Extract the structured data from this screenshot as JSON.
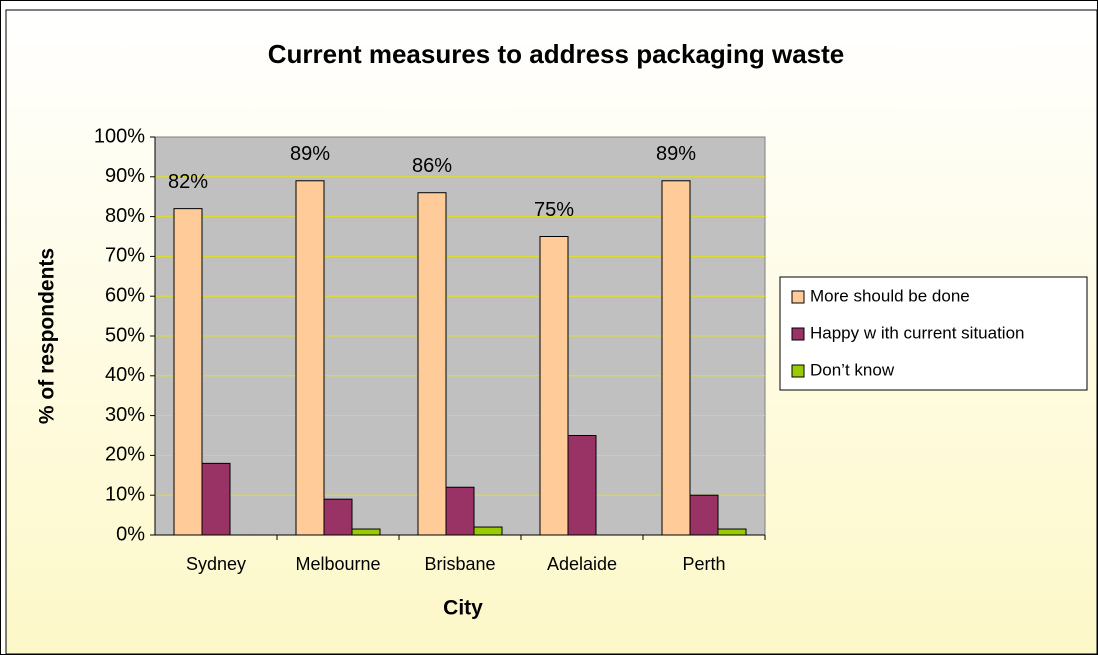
{
  "chart_data": {
    "type": "bar",
    "title": "Current measures to address packaging waste",
    "x_label": "City",
    "y_label": "% of respondents",
    "categories": [
      "Sydney",
      "Melbourne",
      "Brisbane",
      "Adelaide",
      "Perth"
    ],
    "series": [
      {
        "name": "More should be done",
        "color": "#ffcc99",
        "values": [
          82,
          89,
          86,
          75,
          89
        ],
        "value_labels": [
          "82%",
          "89%",
          "86%",
          "75%",
          "89%"
        ]
      },
      {
        "name": "Happy w ith current situation",
        "color": "#993366",
        "values": [
          18,
          9,
          12,
          25,
          10
        ]
      },
      {
        "name": "Don’t know",
        "color": "#99cc00",
        "values": [
          0,
          1.5,
          2,
          0,
          1.5
        ]
      }
    ],
    "ylim": [
      0,
      100
    ],
    "yticks": [
      {
        "value": 0,
        "label": "0%"
      },
      {
        "value": 10,
        "label": "10%"
      },
      {
        "value": 20,
        "label": "20%"
      },
      {
        "value": 30,
        "label": "30%"
      },
      {
        "value": 40,
        "label": "40%"
      },
      {
        "value": 50,
        "label": "50%"
      },
      {
        "value": 60,
        "label": "60%"
      },
      {
        "value": 70,
        "label": "70%"
      },
      {
        "value": 80,
        "label": "80%"
      },
      {
        "value": 90,
        "label": "90%"
      },
      {
        "value": 100,
        "label": "100%"
      }
    ],
    "grid": true,
    "legend": "right"
  }
}
